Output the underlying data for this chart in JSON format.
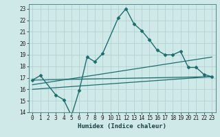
{
  "title": "",
  "xlabel": "Humidex (Indice chaleur)",
  "ylabel": "",
  "xlim": [
    -0.5,
    23.5
  ],
  "ylim": [
    14,
    23.4
  ],
  "xticks": [
    0,
    1,
    2,
    3,
    4,
    5,
    6,
    7,
    8,
    9,
    10,
    11,
    12,
    13,
    14,
    15,
    16,
    17,
    18,
    19,
    20,
    21,
    22,
    23
  ],
  "yticks": [
    14,
    15,
    16,
    17,
    18,
    19,
    20,
    21,
    22,
    23
  ],
  "background_color": "#cfe8e8",
  "grid_color": "#aecece",
  "line_color": "#1a6e6e",
  "series": [
    {
      "x": [
        0,
        1,
        3,
        4,
        5,
        6,
        7,
        8,
        9,
        11,
        12,
        13,
        14,
        15,
        16,
        17,
        18,
        19,
        20,
        21,
        22,
        23
      ],
      "y": [
        16.8,
        17.2,
        15.5,
        15.1,
        13.7,
        15.9,
        18.8,
        18.4,
        19.1,
        22.2,
        23.0,
        21.7,
        21.1,
        20.3,
        19.4,
        19.0,
        19.0,
        19.3,
        17.9,
        17.9,
        17.3,
        17.1
      ],
      "marker": "D",
      "markersize": 2.5,
      "linewidth": 1.0,
      "linestyle": "-"
    },
    {
      "x": [
        0,
        23
      ],
      "y": [
        16.8,
        17.1
      ],
      "marker": null,
      "markersize": 0,
      "linewidth": 0.9,
      "linestyle": "-"
    },
    {
      "x": [
        0,
        23
      ],
      "y": [
        16.4,
        18.8
      ],
      "marker": null,
      "markersize": 0,
      "linewidth": 0.9,
      "linestyle": "-"
    },
    {
      "x": [
        0,
        23
      ],
      "y": [
        16.0,
        17.1
      ],
      "marker": null,
      "markersize": 0,
      "linewidth": 0.9,
      "linestyle": "-"
    }
  ]
}
